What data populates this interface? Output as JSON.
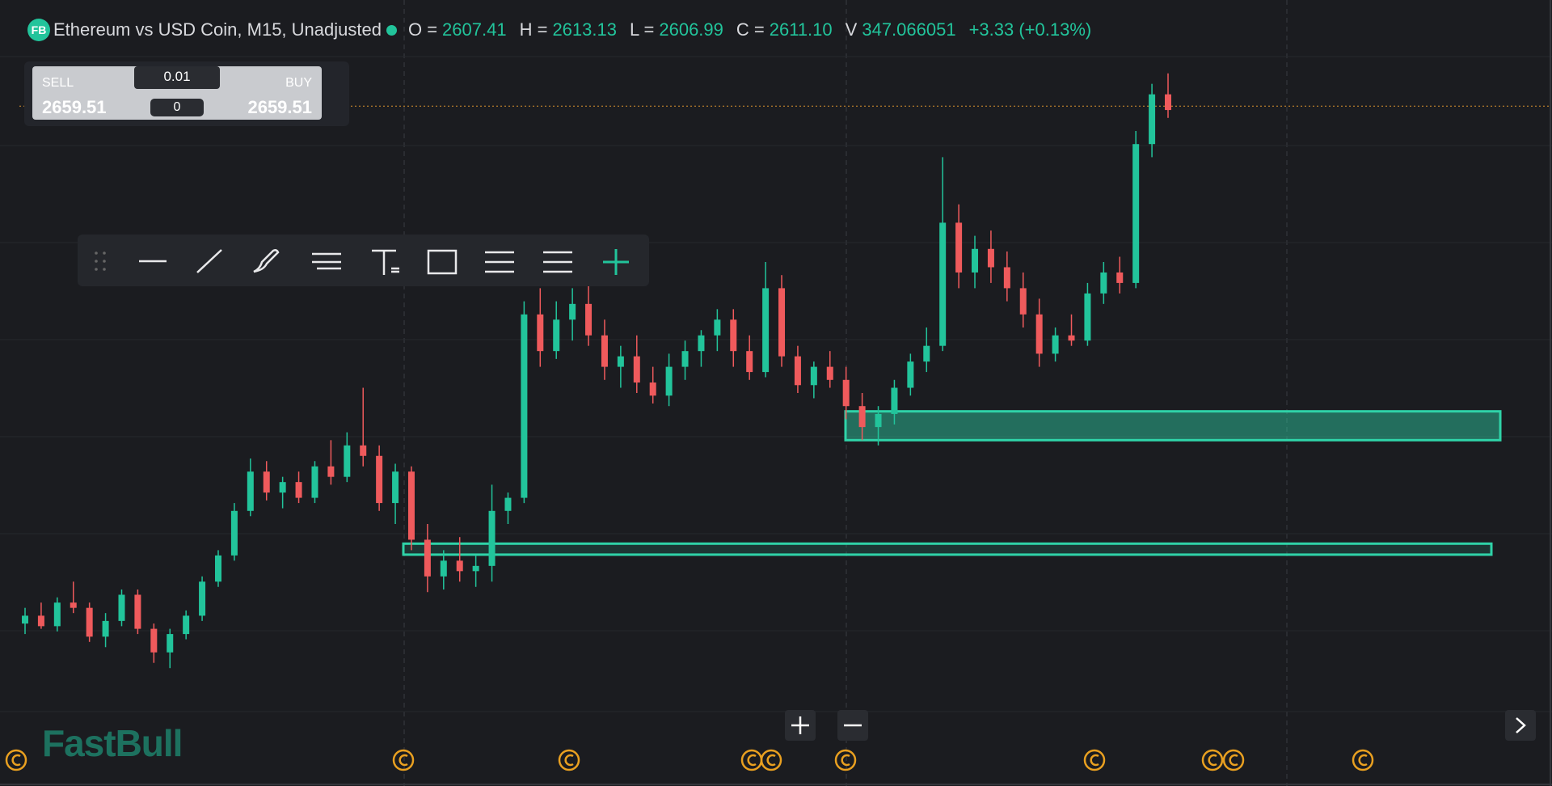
{
  "header": {
    "logo": "FB",
    "symbol": "Ethereum vs USD Coin, M15, Unadjusted",
    "ohlc": [
      {
        "label": "O =",
        "value": "2607.41"
      },
      {
        "label": "H =",
        "value": "2613.13"
      },
      {
        "label": "L =",
        "value": "2606.99"
      },
      {
        "label": "C =",
        "value": "2611.10"
      },
      {
        "label": "V",
        "value": "347.066051"
      }
    ],
    "change": "+3.33 (+0.13%)"
  },
  "trade_panel": {
    "sell_label": "SELL",
    "sell_price": "2659.51",
    "lot": "0.01",
    "position": "0",
    "buy_label": "BUY",
    "buy_price": "2659.51"
  },
  "chart_data": {
    "type": "candlestick",
    "up_color": "#22c49b",
    "down_color": "#ef5a5c",
    "zone_color": "#2fd3a8",
    "price_line_color": "#d9912e",
    "ylim": [
      2400,
      2700
    ],
    "price_line": 2659.51,
    "zones": [
      {
        "top": 2543,
        "bottom": 2532
      },
      {
        "top": 2492.5,
        "bottom": 2488.3
      }
    ],
    "candles": [
      [
        2462,
        2468,
        2458,
        2465
      ],
      [
        2465,
        2470,
        2460,
        2461
      ],
      [
        2461,
        2472,
        2459,
        2470
      ],
      [
        2470,
        2478,
        2466,
        2468
      ],
      [
        2468,
        2470,
        2455,
        2457
      ],
      [
        2457,
        2466,
        2453,
        2463
      ],
      [
        2463,
        2475,
        2461,
        2473
      ],
      [
        2473,
        2475,
        2458,
        2460
      ],
      [
        2460,
        2462,
        2447,
        2451
      ],
      [
        2451,
        2460,
        2445,
        2458
      ],
      [
        2458,
        2467,
        2456,
        2465
      ],
      [
        2465,
        2480,
        2463,
        2478
      ],
      [
        2478,
        2490,
        2476,
        2488
      ],
      [
        2488,
        2508,
        2486,
        2505
      ],
      [
        2505,
        2525,
        2503,
        2520
      ],
      [
        2520,
        2524,
        2509,
        2512
      ],
      [
        2512,
        2518,
        2506,
        2516
      ],
      [
        2516,
        2520,
        2508,
        2510
      ],
      [
        2510,
        2524,
        2508,
        2522
      ],
      [
        2522,
        2532,
        2515,
        2518
      ],
      [
        2518,
        2535,
        2516,
        2530
      ],
      [
        2530,
        2552,
        2522,
        2526
      ],
      [
        2526,
        2530,
        2505,
        2508
      ],
      [
        2508,
        2523,
        2500,
        2520
      ],
      [
        2520,
        2522,
        2490,
        2494
      ],
      [
        2494,
        2500,
        2474,
        2480
      ],
      [
        2480,
        2490,
        2475,
        2486
      ],
      [
        2486,
        2495,
        2478,
        2482
      ],
      [
        2482,
        2488,
        2476,
        2484
      ],
      [
        2484,
        2515,
        2478,
        2505
      ],
      [
        2505,
        2512,
        2500,
        2510
      ],
      [
        2510,
        2585,
        2508,
        2580
      ],
      [
        2580,
        2590,
        2560,
        2566
      ],
      [
        2566,
        2585,
        2563,
        2578
      ],
      [
        2578,
        2590,
        2570,
        2584
      ],
      [
        2584,
        2592,
        2568,
        2572
      ],
      [
        2572,
        2578,
        2555,
        2560
      ],
      [
        2560,
        2568,
        2552,
        2564
      ],
      [
        2564,
        2572,
        2550,
        2554
      ],
      [
        2554,
        2560,
        2546,
        2549
      ],
      [
        2549,
        2565,
        2545,
        2560
      ],
      [
        2560,
        2570,
        2555,
        2566
      ],
      [
        2566,
        2574,
        2560,
        2572
      ],
      [
        2572,
        2582,
        2566,
        2578
      ],
      [
        2578,
        2582,
        2560,
        2566
      ],
      [
        2566,
        2572,
        2555,
        2558
      ],
      [
        2558,
        2600,
        2556,
        2590
      ],
      [
        2590,
        2595,
        2560,
        2564
      ],
      [
        2564,
        2568,
        2550,
        2553
      ],
      [
        2553,
        2562,
        2548,
        2560
      ],
      [
        2560,
        2566,
        2552,
        2555
      ],
      [
        2555,
        2560,
        2540,
        2545
      ],
      [
        2545,
        2550,
        2532,
        2537
      ],
      [
        2537,
        2545,
        2530,
        2542
      ],
      [
        2542,
        2555,
        2538,
        2552
      ],
      [
        2552,
        2565,
        2549,
        2562
      ],
      [
        2562,
        2575,
        2558,
        2568
      ],
      [
        2568,
        2640,
        2566,
        2615
      ],
      [
        2615,
        2622,
        2590,
        2596
      ],
      [
        2596,
        2610,
        2590,
        2605
      ],
      [
        2605,
        2612,
        2592,
        2598
      ],
      [
        2598,
        2604,
        2585,
        2590
      ],
      [
        2590,
        2596,
        2575,
        2580
      ],
      [
        2580,
        2586,
        2560,
        2565
      ],
      [
        2565,
        2575,
        2562,
        2572
      ],
      [
        2572,
        2580,
        2568,
        2570
      ],
      [
        2570,
        2592,
        2568,
        2588
      ],
      [
        2588,
        2600,
        2584,
        2596
      ],
      [
        2596,
        2602,
        2588,
        2592
      ],
      [
        2592,
        2650,
        2590,
        2645
      ],
      [
        2645,
        2668,
        2640,
        2664
      ],
      [
        2664,
        2672,
        2655,
        2658
      ]
    ]
  },
  "watermark": "FastBull"
}
